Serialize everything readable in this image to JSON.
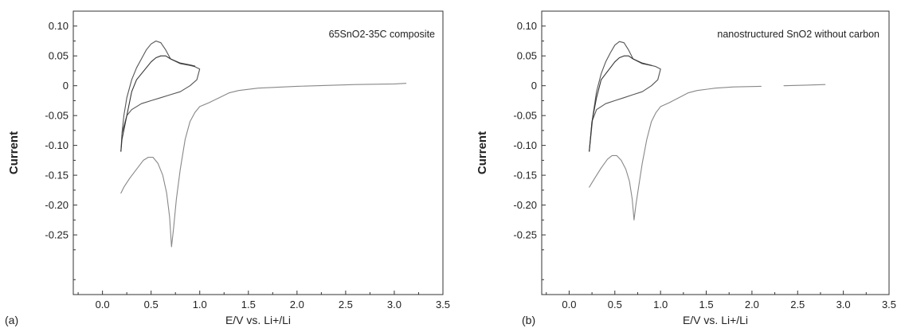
{
  "chart_data": [
    {
      "type": "line",
      "panel_label": "(a)",
      "title": "",
      "annotation": "65SnO2-35C composite",
      "xlabel": "E/V vs. Li+/Li",
      "ylabel": "Current",
      "xlim": [
        -0.3,
        3.5
      ],
      "ylim": [
        -0.35,
        0.125
      ],
      "x_ticks": [
        "0.0",
        "0.5",
        "1.0",
        "1.5",
        "2.0",
        "2.5",
        "3.0",
        "3.5"
      ],
      "y_ticks": [
        "0.10",
        "0.05",
        "0",
        "-0.05",
        "-0.10",
        "-0.15",
        "-0.20",
        "-0.25"
      ],
      "grid": false,
      "series": [
        {
          "color": "#888888",
          "x": [
            3.12,
            3.0,
            2.6,
            2.2,
            2.0,
            1.6,
            1.4,
            1.3,
            1.2,
            1.1,
            1.0,
            0.95,
            0.9,
            0.85,
            0.8,
            0.76,
            0.73,
            0.71,
            0.69,
            0.66,
            0.62,
            0.57,
            0.52,
            0.47,
            0.42,
            0.35,
            0.28,
            0.22,
            0.19
          ],
          "y": [
            0.004,
            0.003,
            0.002,
            0.0,
            -0.001,
            -0.004,
            -0.008,
            -0.012,
            -0.02,
            -0.028,
            -0.035,
            -0.045,
            -0.06,
            -0.09,
            -0.14,
            -0.19,
            -0.24,
            -0.27,
            -0.22,
            -0.18,
            -0.15,
            -0.13,
            -0.12,
            -0.12,
            -0.125,
            -0.14,
            -0.155,
            -0.17,
            -0.18
          ]
        },
        {
          "color": "#555555",
          "x": [
            0.19,
            0.2,
            0.22,
            0.25,
            0.3,
            0.35,
            0.4,
            0.45,
            0.5,
            0.55,
            0.6,
            0.65,
            0.7,
            0.8,
            0.9,
            0.95,
            1.0,
            0.97,
            0.9,
            0.8,
            0.7,
            0.6,
            0.5,
            0.4,
            0.3,
            0.25,
            0.2,
            0.19
          ],
          "y": [
            -0.11,
            -0.08,
            -0.05,
            -0.02,
            0.01,
            0.03,
            0.045,
            0.06,
            0.07,
            0.075,
            0.072,
            0.06,
            0.045,
            0.037,
            0.034,
            0.032,
            0.028,
            0.01,
            0.0,
            -0.01,
            -0.015,
            -0.02,
            -0.025,
            -0.03,
            -0.04,
            -0.05,
            -0.08,
            -0.11
          ]
        },
        {
          "color": "#333333",
          "x": [
            0.19,
            0.2,
            0.25,
            0.3,
            0.35,
            0.4,
            0.45,
            0.5,
            0.55,
            0.6,
            0.65,
            0.7,
            0.8,
            0.9,
            0.95
          ],
          "y": [
            -0.11,
            -0.09,
            -0.05,
            -0.01,
            0.01,
            0.02,
            0.03,
            0.04,
            0.047,
            0.05,
            0.05,
            0.045,
            0.038,
            0.035,
            0.033
          ]
        }
      ]
    },
    {
      "type": "line",
      "panel_label": "(b)",
      "title": "",
      "annotation": "nanostructured SnO2 without carbon",
      "xlabel": "E/V vs. Li+/Li",
      "ylabel": "Current",
      "xlim": [
        -0.3,
        3.5
      ],
      "ylim": [
        -0.35,
        0.125
      ],
      "x_ticks": [
        "0.0",
        "0.5",
        "1.0",
        "1.5",
        "2.0",
        "2.5",
        "3.0",
        "3.5"
      ],
      "y_ticks": [
        "0.10",
        "0.05",
        "0",
        "-0.05",
        "-0.10",
        "-0.15",
        "-0.20",
        "-0.25"
      ],
      "grid": false,
      "series": [
        {
          "color": "#888888",
          "x": [
            2.8,
            2.6,
            2.35
          ],
          "y": [
            0.002,
            0.001,
            0.0
          ]
        },
        {
          "color": "#888888",
          "x": [
            2.1,
            1.8,
            1.6,
            1.4,
            1.3,
            1.2,
            1.1,
            1.0,
            0.95,
            0.9,
            0.85,
            0.8,
            0.76,
            0.73,
            0.71,
            0.69,
            0.66,
            0.62,
            0.57,
            0.52,
            0.47,
            0.42,
            0.35,
            0.28,
            0.24,
            0.22
          ],
          "y": [
            -0.001,
            -0.002,
            -0.004,
            -0.008,
            -0.012,
            -0.02,
            -0.028,
            -0.035,
            -0.045,
            -0.06,
            -0.09,
            -0.13,
            -0.17,
            -0.2,
            -0.225,
            -0.19,
            -0.16,
            -0.14,
            -0.125,
            -0.117,
            -0.117,
            -0.123,
            -0.138,
            -0.155,
            -0.165,
            -0.17
          ]
        },
        {
          "color": "#555555",
          "x": [
            0.22,
            0.24,
            0.26,
            0.3,
            0.35,
            0.4,
            0.45,
            0.5,
            0.55,
            0.6,
            0.65,
            0.7,
            0.8,
            0.9,
            0.95,
            1.0,
            0.97,
            0.9,
            0.8,
            0.7,
            0.6,
            0.5,
            0.4,
            0.3,
            0.25,
            0.22
          ],
          "y": [
            -0.11,
            -0.08,
            -0.05,
            -0.01,
            0.02,
            0.04,
            0.055,
            0.068,
            0.074,
            0.072,
            0.06,
            0.045,
            0.037,
            0.034,
            0.032,
            0.028,
            0.01,
            0.0,
            -0.01,
            -0.015,
            -0.02,
            -0.025,
            -0.03,
            -0.04,
            -0.06,
            -0.11
          ]
        },
        {
          "color": "#333333",
          "x": [
            0.22,
            0.25,
            0.3,
            0.35,
            0.4,
            0.45,
            0.5,
            0.55,
            0.6,
            0.65,
            0.7,
            0.8,
            0.9
          ],
          "y": [
            -0.11,
            -0.06,
            -0.02,
            0.01,
            0.02,
            0.03,
            0.04,
            0.047,
            0.05,
            0.05,
            0.045,
            0.038,
            0.034
          ]
        }
      ]
    }
  ]
}
